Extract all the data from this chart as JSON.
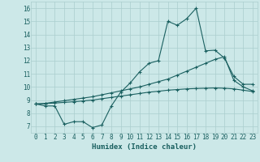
{
  "xlabel": "Humidex (Indice chaleur)",
  "background_color": "#cce8e8",
  "grid_color": "#aacece",
  "line_color": "#1a6060",
  "xlim": [
    -0.5,
    23.5
  ],
  "ylim": [
    6.5,
    16.5
  ],
  "xticks": [
    0,
    1,
    2,
    3,
    4,
    5,
    6,
    7,
    8,
    9,
    10,
    11,
    12,
    13,
    14,
    15,
    16,
    17,
    18,
    19,
    20,
    21,
    22,
    23
  ],
  "yticks": [
    7,
    8,
    9,
    10,
    11,
    12,
    13,
    14,
    15,
    16
  ],
  "line1_x": [
    0,
    1,
    2,
    3,
    4,
    5,
    6,
    7,
    8,
    9,
    10,
    11,
    12,
    13,
    14,
    15,
    16,
    17,
    18,
    19,
    20,
    21,
    22,
    23
  ],
  "line1_y": [
    8.7,
    8.55,
    8.55,
    7.15,
    7.35,
    7.35,
    6.9,
    7.1,
    8.55,
    9.6,
    10.3,
    11.15,
    11.8,
    12.0,
    15.0,
    14.7,
    15.2,
    16.0,
    12.75,
    12.8,
    12.2,
    10.8,
    10.2,
    10.2
  ],
  "line2_x": [
    0,
    1,
    2,
    3,
    4,
    5,
    6,
    7,
    8,
    9,
    10,
    11,
    12,
    13,
    14,
    15,
    16,
    17,
    18,
    19,
    20,
    21,
    22,
    23
  ],
  "line2_y": [
    8.7,
    8.75,
    8.85,
    8.95,
    9.05,
    9.15,
    9.25,
    9.4,
    9.55,
    9.7,
    9.85,
    10.0,
    10.2,
    10.4,
    10.6,
    10.9,
    11.2,
    11.5,
    11.8,
    12.1,
    12.3,
    10.5,
    10.0,
    9.7
  ],
  "line3_x": [
    0,
    1,
    2,
    3,
    4,
    5,
    6,
    7,
    8,
    9,
    10,
    11,
    12,
    13,
    14,
    15,
    16,
    17,
    18,
    19,
    20,
    21,
    22,
    23
  ],
  "line3_y": [
    8.7,
    8.73,
    8.77,
    8.82,
    8.87,
    8.93,
    9.0,
    9.1,
    9.2,
    9.3,
    9.4,
    9.5,
    9.6,
    9.67,
    9.75,
    9.8,
    9.85,
    9.88,
    9.9,
    9.92,
    9.9,
    9.85,
    9.75,
    9.65
  ]
}
